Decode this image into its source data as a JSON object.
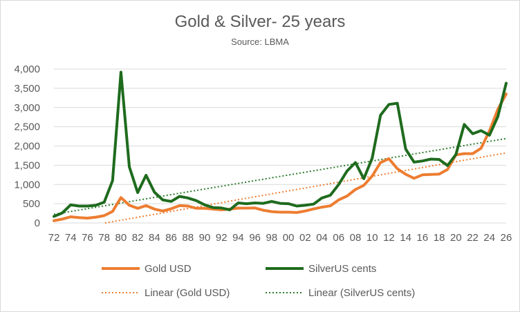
{
  "chart_data": {
    "type": "line",
    "title": "Gold & Silver- 25 years",
    "subtitle": "Source: LBMA",
    "xlabel": "",
    "ylabel": "",
    "ylim": [
      0,
      4000
    ],
    "yticks": [
      "4,000",
      "3,500",
      "3,000",
      "2,500",
      "2,000",
      "1,500",
      "1,000",
      "500",
      "0"
    ],
    "ytick_values": [
      4000,
      3500,
      3000,
      2500,
      2000,
      1500,
      1000,
      500,
      0
    ],
    "xticks": [
      "72",
      "74",
      "76",
      "78",
      "80",
      "82",
      "84",
      "86",
      "88",
      "90",
      "92",
      "94",
      "96",
      "98",
      "00",
      "02",
      "04",
      "06",
      "08",
      "10",
      "12",
      "14",
      "16",
      "18",
      "20",
      "22",
      "24",
      "26"
    ],
    "grid": "horizontal",
    "legend_position": "bottom",
    "x": [
      1972,
      1973,
      1974,
      1975,
      1976,
      1977,
      1978,
      1979,
      1980,
      1981,
      1982,
      1983,
      1984,
      1985,
      1986,
      1987,
      1988,
      1989,
      1990,
      1991,
      1992,
      1993,
      1994,
      1995,
      1996,
      1997,
      1998,
      1999,
      2000,
      2001,
      2002,
      2003,
      2004,
      2005,
      2006,
      2007,
      2008,
      2009,
      2010,
      2011,
      2012,
      2013,
      2014,
      2015,
      2016,
      2017,
      2018,
      2019,
      2020,
      2021,
      2022,
      2023,
      2024,
      2025,
      2026
    ],
    "series": [
      {
        "name": "Gold USD",
        "color": "#ed7d31",
        "values": [
          60,
          100,
          160,
          140,
          125,
          150,
          190,
          300,
          660,
          460,
          380,
          450,
          360,
          310,
          370,
          450,
          440,
          380,
          380,
          360,
          340,
          360,
          385,
          385,
          390,
          330,
          295,
          280,
          280,
          270,
          310,
          365,
          410,
          445,
          600,
          700,
          870,
          975,
          1220,
          1570,
          1670,
          1410,
          1265,
          1160,
          1250,
          1260,
          1270,
          1390,
          1770,
          1800,
          1800,
          1940,
          2390,
          2950,
          3350
        ]
      },
      {
        "name": "SilverUS cents",
        "color": "#1e6b1e",
        "values": [
          170,
          260,
          470,
          440,
          440,
          460,
          540,
          1100,
          3920,
          1460,
          790,
          1240,
          800,
          600,
          560,
          690,
          650,
          580,
          470,
          400,
          390,
          340,
          520,
          500,
          520,
          510,
          560,
          510,
          500,
          440,
          460,
          490,
          650,
          720,
          1000,
          1350,
          1570,
          1150,
          1680,
          2800,
          3080,
          3110,
          1920,
          1580,
          1610,
          1660,
          1650,
          1490,
          1780,
          2560,
          2320,
          2400,
          2280,
          2760,
          3630
        ]
      }
    ],
    "trendlines": [
      {
        "name": "Linear (Gold USD)",
        "color": "#ed7d31",
        "type": "linear"
      },
      {
        "name": "Linear (SilverUS cents)",
        "color": "#2a7a2a",
        "type": "linear"
      }
    ]
  }
}
